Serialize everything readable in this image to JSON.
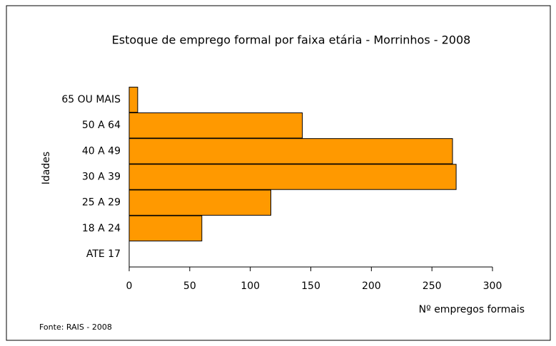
{
  "chart_data": {
    "type": "barh",
    "title": "Estoque de emprego formal por faixa etária - Morrinhos - 2008",
    "categories": [
      "ATE 17",
      "18 A 24",
      "25 A 29",
      "30 A 39",
      "40 A 49",
      "50 A 64",
      "65 OU MAIS"
    ],
    "values": [
      0,
      60,
      117,
      270,
      267,
      143,
      7
    ],
    "color": "#ff9900",
    "xlim": [
      0,
      300
    ],
    "xticks": [
      0,
      50,
      100,
      150,
      200,
      250,
      300
    ],
    "xlabel": "Nº empregos formais",
    "ylabel": "Idades",
    "source": "Fonte: RAIS - 2008"
  }
}
